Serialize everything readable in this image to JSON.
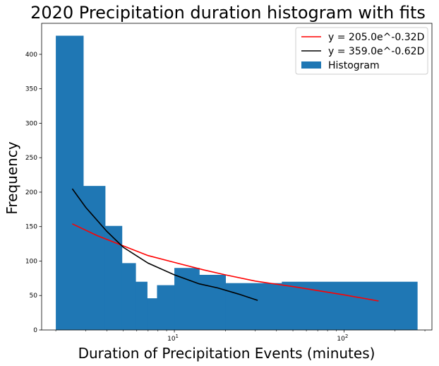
{
  "chart_data": {
    "type": "bar",
    "title": "2020 Precipitation duration histogram with fits",
    "xlabel": "Duration of Precipitation Events (minutes)",
    "ylabel": "Frequency",
    "xscale": "log",
    "xlim": [
      1.65,
      330
    ],
    "ylim": [
      0,
      445
    ],
    "grid": false,
    "legend_position": "top-right",
    "x_tick_labels": [
      {
        "value": 10,
        "base": "10",
        "exp": "1"
      },
      {
        "value": 100,
        "base": "10",
        "exp": "2"
      }
    ],
    "y_ticks": [
      0,
      50,
      100,
      150,
      200,
      250,
      300,
      350,
      400
    ],
    "histogram": {
      "name": "Histogram",
      "color": "#1f77b4",
      "bins": [
        {
          "x0": 2.0,
          "x1": 2.9,
          "value": 427
        },
        {
          "x0": 2.9,
          "x1": 3.9,
          "value": 209
        },
        {
          "x0": 3.9,
          "x1": 4.9,
          "value": 151
        },
        {
          "x0": 4.9,
          "x1": 5.9,
          "value": 97
        },
        {
          "x0": 5.9,
          "x1": 6.9,
          "value": 70
        },
        {
          "x0": 6.9,
          "x1": 7.9,
          "value": 46
        },
        {
          "x0": 7.9,
          "x1": 10.0,
          "value": 65
        },
        {
          "x0": 10.0,
          "x1": 14.0,
          "value": 90
        },
        {
          "x0": 14.0,
          "x1": 20.0,
          "value": 80
        },
        {
          "x0": 20.0,
          "x1": 43.0,
          "value": 68
        },
        {
          "x0": 43.0,
          "x1": 270.0,
          "value": 70
        }
      ]
    },
    "series": [
      {
        "name": "y = 205.0e^-0.32D",
        "color": "#ff0000",
        "x": [
          2.5,
          3.5,
          5,
          7,
          10,
          15,
          20,
          30,
          50,
          75,
          100,
          160
        ],
        "values": [
          154,
          137,
          122,
          108,
          98,
          87,
          80,
          71,
          63,
          56,
          51,
          42
        ]
      },
      {
        "name": "y = 359.0e^-0.62D",
        "color": "#000000",
        "x": [
          2.5,
          3,
          4,
          5,
          7,
          10,
          14,
          18,
          24,
          31
        ],
        "values": [
          205,
          178,
          143,
          120,
          97,
          80,
          67,
          61,
          52,
          43
        ]
      }
    ]
  }
}
